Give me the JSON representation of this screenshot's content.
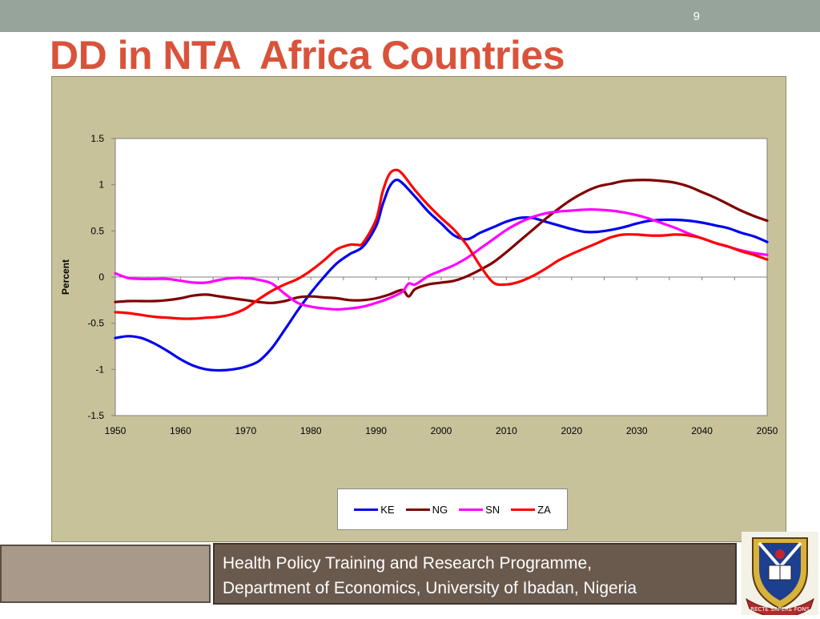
{
  "slide": {
    "number": "9",
    "title": "DD in NTA  Africa Countries"
  },
  "footer": {
    "line1": "Health Policy Training and Research Programme,",
    "line2": "Department of Economics, University of Ibadan, Nigeria"
  },
  "logo": {
    "icon": "university-of-ibadan-crest-icon",
    "motto": "RECTE SAPERE FONS"
  },
  "colors": {
    "title": "#d9533b",
    "top_bar": "#97a49c",
    "chart_panel": "#c7c29a",
    "footer_left": "#a8998a",
    "footer_right": "#6a5a4e"
  },
  "chart_data": {
    "type": "line",
    "title": "",
    "xlabel": "",
    "ylabel": "Percent",
    "xlim": [
      1950,
      2050
    ],
    "ylim": [
      -1.5,
      1.5
    ],
    "xticks": [
      "1950",
      "1960",
      "1970",
      "1980",
      "1990",
      "2000",
      "2010",
      "2020",
      "2030",
      "2040",
      "2050"
    ],
    "yticks": [
      "1.5",
      "1",
      "0.5",
      "0",
      "-0.5",
      "-1",
      "-1.5"
    ],
    "grid": false,
    "legend_position": "bottom-center",
    "series": [
      {
        "name": "KE",
        "color": "#0000ee",
        "points": [
          [
            1950,
            -0.66
          ],
          [
            1952,
            -0.64
          ],
          [
            1954,
            -0.66
          ],
          [
            1956,
            -0.72
          ],
          [
            1958,
            -0.8
          ],
          [
            1960,
            -0.89
          ],
          [
            1962,
            -0.96
          ],
          [
            1964,
            -1.0
          ],
          [
            1966,
            -1.01
          ],
          [
            1968,
            -1.0
          ],
          [
            1970,
            -0.97
          ],
          [
            1972,
            -0.91
          ],
          [
            1974,
            -0.77
          ],
          [
            1976,
            -0.57
          ],
          [
            1978,
            -0.36
          ],
          [
            1980,
            -0.17
          ],
          [
            1982,
            0.0
          ],
          [
            1984,
            0.15
          ],
          [
            1986,
            0.25
          ],
          [
            1988,
            0.33
          ],
          [
            1990,
            0.55
          ],
          [
            1991,
            0.78
          ],
          [
            1992,
            0.97
          ],
          [
            1993,
            1.05
          ],
          [
            1994,
            1.02
          ],
          [
            1996,
            0.87
          ],
          [
            1998,
            0.71
          ],
          [
            2000,
            0.58
          ],
          [
            2002,
            0.45
          ],
          [
            2004,
            0.41
          ],
          [
            2006,
            0.48
          ],
          [
            2008,
            0.54
          ],
          [
            2010,
            0.6
          ],
          [
            2012,
            0.64
          ],
          [
            2014,
            0.64
          ],
          [
            2016,
            0.6
          ],
          [
            2018,
            0.56
          ],
          [
            2020,
            0.52
          ],
          [
            2022,
            0.49
          ],
          [
            2024,
            0.49
          ],
          [
            2026,
            0.51
          ],
          [
            2028,
            0.54
          ],
          [
            2030,
            0.58
          ],
          [
            2032,
            0.61
          ],
          [
            2034,
            0.62
          ],
          [
            2036,
            0.62
          ],
          [
            2038,
            0.61
          ],
          [
            2040,
            0.59
          ],
          [
            2042,
            0.56
          ],
          [
            2044,
            0.53
          ],
          [
            2046,
            0.48
          ],
          [
            2048,
            0.44
          ],
          [
            2050,
            0.38
          ]
        ]
      },
      {
        "name": "NG",
        "color": "#7f0000",
        "points": [
          [
            1950,
            -0.27
          ],
          [
            1952,
            -0.26
          ],
          [
            1954,
            -0.26
          ],
          [
            1956,
            -0.26
          ],
          [
            1958,
            -0.25
          ],
          [
            1960,
            -0.23
          ],
          [
            1962,
            -0.2
          ],
          [
            1964,
            -0.19
          ],
          [
            1966,
            -0.21
          ],
          [
            1968,
            -0.23
          ],
          [
            1970,
            -0.25
          ],
          [
            1972,
            -0.27
          ],
          [
            1974,
            -0.28
          ],
          [
            1976,
            -0.26
          ],
          [
            1978,
            -0.22
          ],
          [
            1980,
            -0.21
          ],
          [
            1982,
            -0.22
          ],
          [
            1984,
            -0.23
          ],
          [
            1986,
            -0.25
          ],
          [
            1988,
            -0.25
          ],
          [
            1990,
            -0.23
          ],
          [
            1992,
            -0.19
          ],
          [
            1994,
            -0.14
          ],
          [
            1995,
            -0.21
          ],
          [
            1996,
            -0.13
          ],
          [
            1998,
            -0.08
          ],
          [
            2000,
            -0.06
          ],
          [
            2002,
            -0.04
          ],
          [
            2004,
            0.01
          ],
          [
            2006,
            0.08
          ],
          [
            2008,
            0.16
          ],
          [
            2010,
            0.27
          ],
          [
            2012,
            0.39
          ],
          [
            2014,
            0.51
          ],
          [
            2016,
            0.63
          ],
          [
            2018,
            0.74
          ],
          [
            2020,
            0.84
          ],
          [
            2022,
            0.92
          ],
          [
            2024,
            0.98
          ],
          [
            2026,
            1.01
          ],
          [
            2028,
            1.04
          ],
          [
            2030,
            1.05
          ],
          [
            2032,
            1.05
          ],
          [
            2034,
            1.04
          ],
          [
            2036,
            1.02
          ],
          [
            2038,
            0.98
          ],
          [
            2040,
            0.92
          ],
          [
            2042,
            0.86
          ],
          [
            2044,
            0.79
          ],
          [
            2046,
            0.72
          ],
          [
            2048,
            0.66
          ],
          [
            2050,
            0.61
          ]
        ]
      },
      {
        "name": "SN",
        "color": "#ff00ff",
        "points": [
          [
            1950,
            0.04
          ],
          [
            1952,
            -0.01
          ],
          [
            1954,
            -0.02
          ],
          [
            1956,
            -0.02
          ],
          [
            1958,
            -0.02
          ],
          [
            1960,
            -0.04
          ],
          [
            1962,
            -0.06
          ],
          [
            1964,
            -0.06
          ],
          [
            1966,
            -0.03
          ],
          [
            1968,
            -0.01
          ],
          [
            1970,
            -0.01
          ],
          [
            1972,
            -0.03
          ],
          [
            1974,
            -0.07
          ],
          [
            1976,
            -0.18
          ],
          [
            1978,
            -0.28
          ],
          [
            1980,
            -0.32
          ],
          [
            1982,
            -0.34
          ],
          [
            1984,
            -0.35
          ],
          [
            1986,
            -0.34
          ],
          [
            1988,
            -0.32
          ],
          [
            1990,
            -0.28
          ],
          [
            1992,
            -0.23
          ],
          [
            1994,
            -0.16
          ],
          [
            1995,
            -0.07
          ],
          [
            1996,
            -0.08
          ],
          [
            1998,
            0.01
          ],
          [
            2000,
            0.07
          ],
          [
            2002,
            0.13
          ],
          [
            2004,
            0.21
          ],
          [
            2006,
            0.31
          ],
          [
            2008,
            0.41
          ],
          [
            2010,
            0.51
          ],
          [
            2012,
            0.59
          ],
          [
            2014,
            0.65
          ],
          [
            2016,
            0.69
          ],
          [
            2018,
            0.71
          ],
          [
            2020,
            0.72
          ],
          [
            2022,
            0.73
          ],
          [
            2024,
            0.73
          ],
          [
            2026,
            0.72
          ],
          [
            2028,
            0.7
          ],
          [
            2030,
            0.67
          ],
          [
            2032,
            0.63
          ],
          [
            2034,
            0.58
          ],
          [
            2036,
            0.53
          ],
          [
            2038,
            0.47
          ],
          [
            2040,
            0.42
          ],
          [
            2042,
            0.37
          ],
          [
            2044,
            0.33
          ],
          [
            2046,
            0.29
          ],
          [
            2048,
            0.26
          ],
          [
            2050,
            0.24
          ]
        ]
      },
      {
        "name": "ZA",
        "color": "#ff0000",
        "points": [
          [
            1950,
            -0.38
          ],
          [
            1952,
            -0.39
          ],
          [
            1954,
            -0.41
          ],
          [
            1956,
            -0.43
          ],
          [
            1958,
            -0.44
          ],
          [
            1960,
            -0.45
          ],
          [
            1962,
            -0.45
          ],
          [
            1964,
            -0.44
          ],
          [
            1966,
            -0.43
          ],
          [
            1968,
            -0.4
          ],
          [
            1970,
            -0.34
          ],
          [
            1972,
            -0.24
          ],
          [
            1974,
            -0.15
          ],
          [
            1976,
            -0.08
          ],
          [
            1978,
            -0.02
          ],
          [
            1980,
            0.07
          ],
          [
            1982,
            0.18
          ],
          [
            1984,
            0.3
          ],
          [
            1986,
            0.35
          ],
          [
            1987,
            0.35
          ],
          [
            1988,
            0.37
          ],
          [
            1990,
            0.62
          ],
          [
            1991,
            0.92
          ],
          [
            1992,
            1.11
          ],
          [
            1993,
            1.16
          ],
          [
            1994,
            1.12
          ],
          [
            1996,
            0.94
          ],
          [
            1998,
            0.78
          ],
          [
            2000,
            0.64
          ],
          [
            2002,
            0.51
          ],
          [
            2004,
            0.34
          ],
          [
            2006,
            0.12
          ],
          [
            2008,
            -0.06
          ],
          [
            2010,
            -0.08
          ],
          [
            2012,
            -0.05
          ],
          [
            2014,
            0.01
          ],
          [
            2016,
            0.09
          ],
          [
            2018,
            0.18
          ],
          [
            2020,
            0.25
          ],
          [
            2022,
            0.31
          ],
          [
            2024,
            0.37
          ],
          [
            2026,
            0.43
          ],
          [
            2028,
            0.46
          ],
          [
            2030,
            0.46
          ],
          [
            2032,
            0.45
          ],
          [
            2034,
            0.45
          ],
          [
            2036,
            0.46
          ],
          [
            2038,
            0.45
          ],
          [
            2040,
            0.42
          ],
          [
            2042,
            0.37
          ],
          [
            2044,
            0.33
          ],
          [
            2046,
            0.28
          ],
          [
            2048,
            0.24
          ],
          [
            2050,
            0.19
          ]
        ]
      }
    ]
  }
}
